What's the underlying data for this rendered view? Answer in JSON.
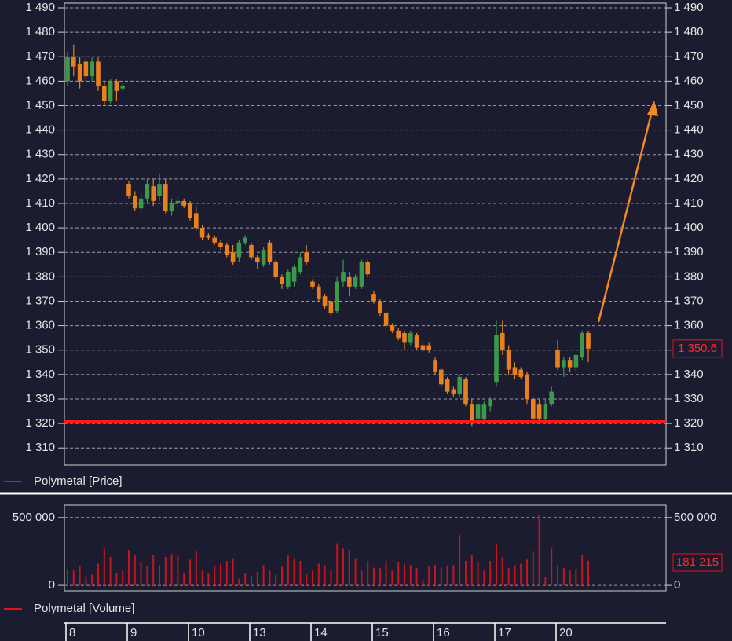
{
  "chart_data": [
    {
      "type": "candlestick",
      "legend": "Polymetal [Price]",
      "legend_color": "#e0141e",
      "up_color": "#3a9a4a",
      "down_color": "#e8801e",
      "grid": true,
      "categories": [
        "8",
        null,
        null,
        null,
        null,
        null,
        null,
        null,
        null,
        null,
        "9",
        null,
        null,
        null,
        null,
        null,
        null,
        null,
        null,
        null,
        "10",
        null,
        null,
        null,
        null,
        null,
        null,
        null,
        null,
        null,
        "13",
        null,
        null,
        null,
        null,
        null,
        null,
        null,
        null,
        null,
        "14",
        null,
        null,
        null,
        null,
        null,
        null,
        null,
        null,
        null,
        "15",
        null,
        null,
        null,
        null,
        null,
        null,
        null,
        null,
        null,
        "16",
        null,
        null,
        null,
        null,
        null,
        null,
        null,
        null,
        null,
        "17",
        null,
        null,
        null,
        null,
        null,
        null,
        null,
        null,
        null,
        "20",
        null,
        null,
        null,
        null,
        null
      ],
      "open": [
        1460,
        1470,
        1467,
        1468,
        1462,
        1468,
        1458,
        1452,
        1460,
        1457,
        1418,
        1413,
        1408,
        1412,
        1417,
        1413,
        1418,
        1407,
        1410,
        1411,
        1410,
        1406,
        1400,
        1397,
        1396,
        1394,
        1393,
        1390,
        1388,
        1394,
        1393,
        1388,
        1385,
        1394,
        1386,
        1380,
        1376,
        1378,
        1382,
        1390,
        1378,
        1376,
        1372,
        1370,
        1366,
        1378,
        1380,
        1376,
        1376,
        1386,
        1373,
        1370,
        1365,
        1360,
        1358,
        1357,
        1353,
        1356,
        1352,
        1352,
        1346,
        1342,
        1338,
        1334,
        1332,
        1338,
        1328,
        1322,
        1322,
        1327,
        1337,
        1357,
        1350,
        1343,
        1342,
        1340,
        1330,
        1328,
        1322,
        1328,
        1350,
        1343,
        1346,
        1343,
        1347,
        1357
      ],
      "high": [
        1472,
        1475,
        1470,
        1470,
        1470,
        1470,
        1460,
        1461,
        1461,
        1459,
        1419,
        1415,
        1414,
        1420,
        1420,
        1422,
        1420,
        1412,
        1413,
        1412,
        1411,
        1409,
        1401,
        1398,
        1397,
        1395,
        1394,
        1393,
        1395,
        1397,
        1394,
        1389,
        1392,
        1395,
        1387,
        1381,
        1383,
        1385,
        1390,
        1393,
        1379,
        1377,
        1373,
        1371,
        1380,
        1387,
        1382,
        1381,
        1387,
        1387,
        1374,
        1371,
        1366,
        1361,
        1359,
        1358,
        1358,
        1357,
        1353,
        1353,
        1347,
        1343,
        1339,
        1335,
        1340,
        1339,
        1330,
        1329,
        1329,
        1331,
        1362,
        1362,
        1352,
        1345,
        1343,
        1341,
        1331,
        1330,
        1330,
        1335,
        1354,
        1347,
        1347,
        1349,
        1358,
        1358
      ],
      "low": [
        1458,
        1462,
        1457,
        1460,
        1460,
        1456,
        1450,
        1451,
        1452,
        1456,
        1412,
        1407,
        1406,
        1410,
        1409,
        1411,
        1406,
        1405,
        1408,
        1408,
        1403,
        1399,
        1395,
        1395,
        1393,
        1391,
        1388,
        1385,
        1386,
        1393,
        1387,
        1383,
        1384,
        1385,
        1379,
        1375,
        1375,
        1376,
        1381,
        1385,
        1375,
        1370,
        1367,
        1364,
        1365,
        1376,
        1372,
        1375,
        1375,
        1380,
        1369,
        1364,
        1359,
        1357,
        1354,
        1350,
        1352,
        1350,
        1349,
        1349,
        1340,
        1335,
        1332,
        1331,
        1331,
        1327,
        1319,
        1321,
        1321,
        1325,
        1335,
        1348,
        1340,
        1338,
        1338,
        1328,
        1320,
        1320,
        1321,
        1327,
        1342,
        1339,
        1341,
        1341,
        1346,
        1345
      ],
      "close": [
        1470,
        1466,
        1460,
        1462,
        1468,
        1458,
        1452,
        1460,
        1456,
        1458,
        1413,
        1408,
        1412,
        1418,
        1411,
        1418,
        1407,
        1410,
        1411,
        1409,
        1404,
        1400,
        1396,
        1396,
        1394,
        1392,
        1389,
        1386,
        1394,
        1396,
        1388,
        1386,
        1391,
        1386,
        1380,
        1377,
        1382,
        1384,
        1388,
        1386,
        1376,
        1371,
        1368,
        1365,
        1378,
        1382,
        1376,
        1380,
        1386,
        1381,
        1370,
        1365,
        1360,
        1358,
        1355,
        1353,
        1357,
        1351,
        1350,
        1350,
        1341,
        1336,
        1333,
        1332,
        1339,
        1328,
        1320,
        1328,
        1328,
        1330,
        1356,
        1350,
        1342,
        1340,
        1339,
        1330,
        1322,
        1322,
        1328,
        1333,
        1343,
        1346,
        1343,
        1348,
        1357,
        1350.6
      ],
      "last_label": "1 350.6",
      "ylim": [
        1303,
        1490
      ],
      "yticks": [
        {
          "value": 1310,
          "label": "1 310"
        },
        {
          "value": 1320,
          "label": "1 320"
        },
        {
          "value": 1330,
          "label": "1 330"
        },
        {
          "value": 1340,
          "label": "1 340"
        },
        {
          "value": 1350,
          "label": "1 350"
        },
        {
          "value": 1360,
          "label": "1 360"
        },
        {
          "value": 1370,
          "label": "1 370"
        },
        {
          "value": 1380,
          "label": "1 380"
        },
        {
          "value": 1390,
          "label": "1 390"
        },
        {
          "value": 1400,
          "label": "1 400"
        },
        {
          "value": 1410,
          "label": "1 410"
        },
        {
          "value": 1420,
          "label": "1 420"
        },
        {
          "value": 1430,
          "label": "1 430"
        },
        {
          "value": 1440,
          "label": "1 440"
        },
        {
          "value": 1450,
          "label": "1 450"
        },
        {
          "value": 1460,
          "label": "1 460"
        },
        {
          "value": 1470,
          "label": "1 470"
        },
        {
          "value": 1480,
          "label": "1 480"
        },
        {
          "value": 1490,
          "label": "1 490"
        }
      ]
    },
    {
      "type": "bar",
      "legend": "Polymetal [Volume]",
      "color": "#c8141e",
      "grid": true,
      "values": [
        120000,
        110000,
        140000,
        60000,
        80000,
        160000,
        270000,
        210000,
        90000,
        110000,
        260000,
        220000,
        170000,
        140000,
        220000,
        150000,
        210000,
        230000,
        220000,
        90000,
        190000,
        250000,
        110000,
        90000,
        140000,
        160000,
        180000,
        200000,
        50000,
        90000,
        70000,
        100000,
        150000,
        110000,
        80000,
        140000,
        220000,
        200000,
        180000,
        80000,
        110000,
        160000,
        150000,
        120000,
        310000,
        270000,
        260000,
        200000,
        110000,
        180000,
        130000,
        130000,
        180000,
        110000,
        170000,
        160000,
        150000,
        130000,
        40000,
        140000,
        150000,
        130000,
        140000,
        150000,
        370000,
        180000,
        220000,
        170000,
        110000,
        180000,
        300000,
        210000,
        130000,
        150000,
        160000,
        190000,
        250000,
        520000,
        60000,
        280000,
        150000,
        130000,
        110000,
        120000,
        220000,
        181215
      ],
      "last_label": "181 215",
      "ylim": [
        -40000,
        580000
      ],
      "yticks": [
        0,
        {
          "value": 500000,
          "label": "500 000"
        }
      ]
    }
  ]
}
